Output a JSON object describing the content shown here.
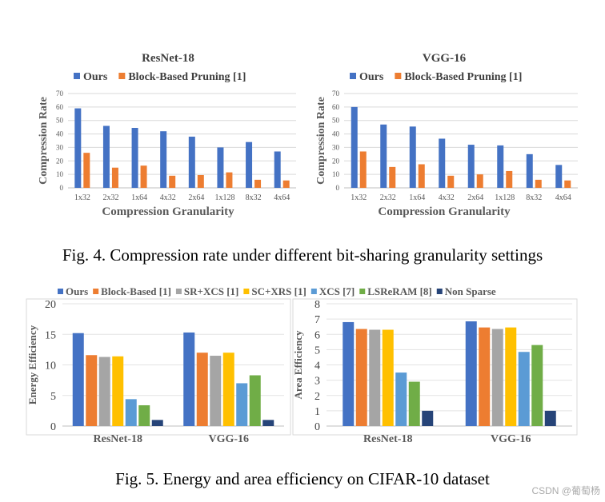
{
  "figure4": {
    "caption": "Fig. 4.   Compression rate under different bit-sharing granularity settings",
    "colors": {
      "ours": "#4472c4",
      "block": "#ed7d31",
      "grid": "#d9d9d9"
    },
    "chart_data": [
      {
        "type": "bar",
        "title": "ResNet-18",
        "xlabel": "Compression Granularity",
        "ylabel": "Compression Rate",
        "ylim": [
          0,
          70
        ],
        "yticks": [
          0,
          10,
          20,
          30,
          40,
          50,
          60,
          70
        ],
        "categories": [
          "1x32",
          "2x32",
          "1x64",
          "4x32",
          "2x64",
          "1x128",
          "8x32",
          "4x64"
        ],
        "series": [
          {
            "name": "Ours",
            "values": [
              59,
              46,
              44.5,
              42,
              38,
              30,
              34,
              27
            ]
          },
          {
            "name": "Block-Based Pruning [1]",
            "values": [
              26,
              15,
              16.5,
              9,
              9.5,
              11.5,
              6,
              5.5
            ]
          }
        ]
      },
      {
        "type": "bar",
        "title": "VGG-16",
        "xlabel": "Compression Granularity",
        "ylabel": "Compression Rate",
        "ylim": [
          0,
          70
        ],
        "yticks": [
          0,
          10,
          20,
          30,
          40,
          50,
          60,
          70
        ],
        "categories": [
          "1x32",
          "2x32",
          "1x64",
          "4x32",
          "2x64",
          "1x128",
          "8x32",
          "4x64"
        ],
        "series": [
          {
            "name": "Ours",
            "values": [
              60,
              47,
              45.5,
              36.5,
              32,
              31.5,
              25,
              17
            ]
          },
          {
            "name": "Block-Based Pruning [1]",
            "values": [
              27,
              15.5,
              17.5,
              9,
              10,
              12.5,
              6,
              5.5
            ]
          }
        ]
      }
    ]
  },
  "figure5": {
    "caption": "Fig. 5.   Energy and area efficiency on CIFAR-10 dataset",
    "legend": [
      {
        "name": "Ours",
        "color": "#4472c4"
      },
      {
        "name": "Block-Based [1]",
        "color": "#ed7d31"
      },
      {
        "name": "SR+XCS [1]",
        "color": "#a5a5a5"
      },
      {
        "name": "SC+XRS [1]",
        "color": "#ffc000"
      },
      {
        "name": "XCS [7]",
        "color": "#5b9bd5"
      },
      {
        "name": "LSReRAM [8]",
        "color": "#70ad47"
      },
      {
        "name": "Non Sparse",
        "color": "#264478"
      }
    ],
    "chart_data": [
      {
        "type": "bar",
        "title": "",
        "xlabel": "",
        "ylabel": "Energy Efficiency",
        "ylim": [
          0,
          20
        ],
        "yticks": [
          0,
          5,
          10,
          15,
          20
        ],
        "categories": [
          "ResNet-18",
          "VGG-16"
        ],
        "series": [
          {
            "name": "Ours",
            "values": [
              15.2,
              15.3
            ]
          },
          {
            "name": "Block-Based [1]",
            "values": [
              11.6,
              12.0
            ]
          },
          {
            "name": "SR+XCS [1]",
            "values": [
              11.3,
              11.5
            ]
          },
          {
            "name": "SC+XRS [1]",
            "values": [
              11.4,
              12.0
            ]
          },
          {
            "name": "XCS [7]",
            "values": [
              4.4,
              7.0
            ]
          },
          {
            "name": "LSReRAM [8]",
            "values": [
              3.4,
              8.3
            ]
          },
          {
            "name": "Non Sparse",
            "values": [
              1.0,
              1.0
            ]
          }
        ]
      },
      {
        "type": "bar",
        "title": "",
        "xlabel": "",
        "ylabel": "Area Efficiency",
        "ylim": [
          0,
          8
        ],
        "yticks": [
          0,
          1,
          2,
          3,
          4,
          5,
          6,
          7,
          8
        ],
        "categories": [
          "ResNet-18",
          "VGG-16"
        ],
        "series": [
          {
            "name": "Ours",
            "values": [
              6.8,
              6.85
            ]
          },
          {
            "name": "Block-Based [1]",
            "values": [
              6.35,
              6.45
            ]
          },
          {
            "name": "SR+XCS [1]",
            "values": [
              6.3,
              6.35
            ]
          },
          {
            "name": "SC+XRS [1]",
            "values": [
              6.3,
              6.45
            ]
          },
          {
            "name": "XCS [7]",
            "values": [
              3.5,
              4.85
            ]
          },
          {
            "name": "LSReRAM [8]",
            "values": [
              2.9,
              5.3
            ]
          },
          {
            "name": "Non Sparse",
            "values": [
              1.0,
              1.0
            ]
          }
        ]
      }
    ]
  },
  "watermark": "CSDN @葡萄杨"
}
